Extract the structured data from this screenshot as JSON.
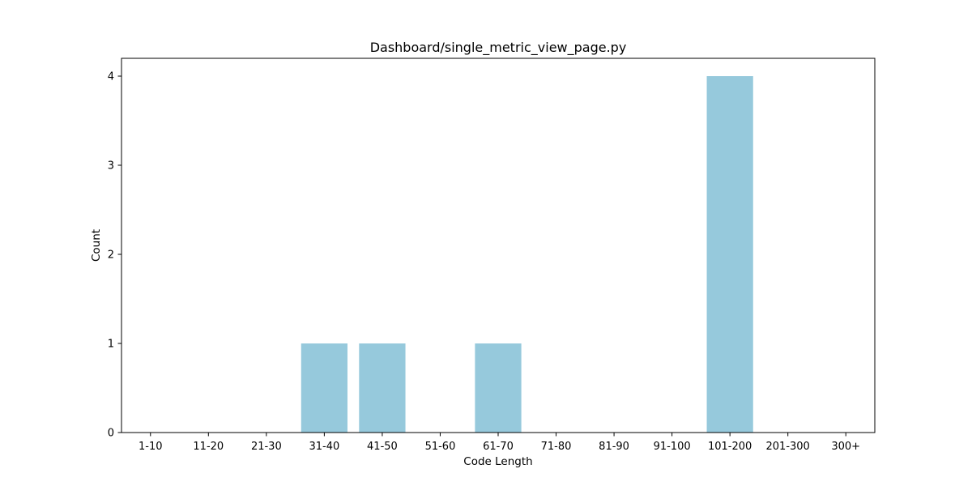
{
  "chart_data": {
    "type": "bar",
    "title": "Dashboard/single_metric_view_page.py",
    "xlabel": "Code Length",
    "ylabel": "Count",
    "categories": [
      "1-10",
      "11-20",
      "21-30",
      "31-40",
      "41-50",
      "51-60",
      "61-70",
      "71-80",
      "81-90",
      "91-100",
      "101-200",
      "201-300",
      "300+"
    ],
    "values": [
      0,
      0,
      0,
      1,
      1,
      0,
      1,
      0,
      0,
      0,
      4,
      0,
      0
    ],
    "yticks": [
      0,
      1,
      2,
      3,
      4
    ],
    "ylim": [
      0,
      4.2
    ],
    "bar_color": "#96c9dc",
    "grid": false,
    "legend": "none"
  }
}
